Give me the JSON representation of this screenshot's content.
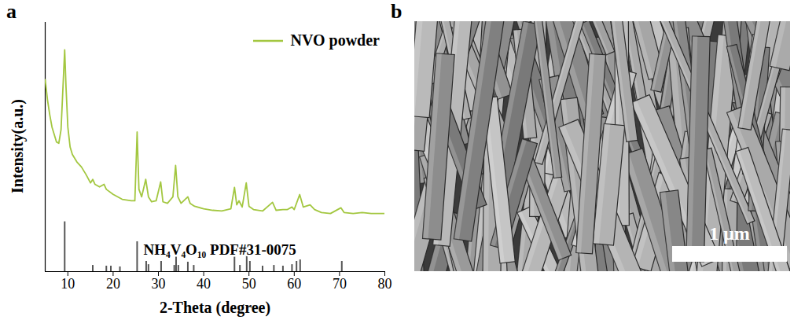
{
  "panel_labels": [
    "a",
    "b"
  ],
  "chart_data": {
    "type": "line",
    "x_label": "2-Theta (degree)",
    "y_label": "Intensity(a.u.)",
    "xlim": [
      5,
      80
    ],
    "xticks": [
      10,
      20,
      30,
      40,
      50,
      60,
      70,
      80
    ],
    "ylim": [
      0,
      100
    ],
    "tick_labels": "x",
    "legend": "upper right",
    "series": [
      {
        "name": "NVO powder",
        "type": "line",
        "color": "#a3c740",
        "x": [
          5,
          5.5,
          6,
          6.5,
          7,
          7.5,
          8,
          8.5,
          9.0,
          9.3,
          9.6,
          10,
          10.5,
          11,
          12,
          13,
          14,
          15,
          15.5,
          16,
          17,
          18,
          18.5,
          20,
          22,
          24,
          24.8,
          25.3,
          25.7,
          26.3,
          27.2,
          27.8,
          28.5,
          29.5,
          30.5,
          31,
          32,
          33.2,
          33.8,
          34.3,
          35,
          36.5,
          37,
          38,
          40,
          42,
          44,
          46,
          46.8,
          47.3,
          47.8,
          48.5,
          49.4,
          50,
          51,
          53,
          55.2,
          56,
          57.5,
          58.5,
          59.5,
          60,
          61.2,
          62,
          63.5,
          64.5,
          66,
          68,
          70.3,
          71,
          73,
          75,
          77,
          80
        ],
        "values": [
          77,
          69,
          63,
          58,
          55,
          52,
          51.5,
          57,
          77,
          89,
          74,
          58,
          50,
          47,
          44,
          42,
          39,
          35.6,
          37,
          35,
          34,
          35,
          33,
          31,
          29,
          28.4,
          28.4,
          56,
          33,
          30,
          37,
          30,
          28,
          28.4,
          36,
          28,
          27.4,
          30,
          42.6,
          30,
          27.4,
          30,
          27.4,
          26.2,
          25.2,
          24.6,
          24.3,
          25.2,
          33.8,
          26.8,
          28.4,
          25.9,
          35.6,
          26.2,
          24.9,
          24.3,
          27.8,
          24.6,
          24.9,
          24.9,
          25.9,
          24.9,
          30.9,
          25.9,
          26.8,
          24.9,
          23.7,
          23.3,
          25.6,
          23.7,
          23.3,
          23.7,
          23.3,
          23.3
        ]
      },
      {
        "name": "NH₄V₄O₁₀ PDF#31-0075",
        "type": "stick",
        "color": "#555555",
        "x": [
          9.3,
          15.5,
          18.5,
          19.5,
          21.5,
          25.3,
          27.3,
          27.8,
          30.6,
          33.5,
          33.9,
          34.4,
          36.5,
          37.8,
          46.8,
          48,
          49.5,
          50.2,
          53,
          55.5,
          57.5,
          59.5,
          60.5,
          61.3,
          70.5
        ],
        "values": [
          20,
          2.5,
          2.2,
          2.2,
          1.9,
          12,
          4.1,
          2.8,
          4.1,
          2.5,
          6,
          2.5,
          3.8,
          2.5,
          6,
          2.5,
          8.2,
          4.1,
          2.2,
          2.5,
          2.2,
          2.8,
          4.1,
          4.7,
          4.1
        ]
      }
    ]
  },
  "image_panel": {
    "scale_bar": "1 μm"
  }
}
